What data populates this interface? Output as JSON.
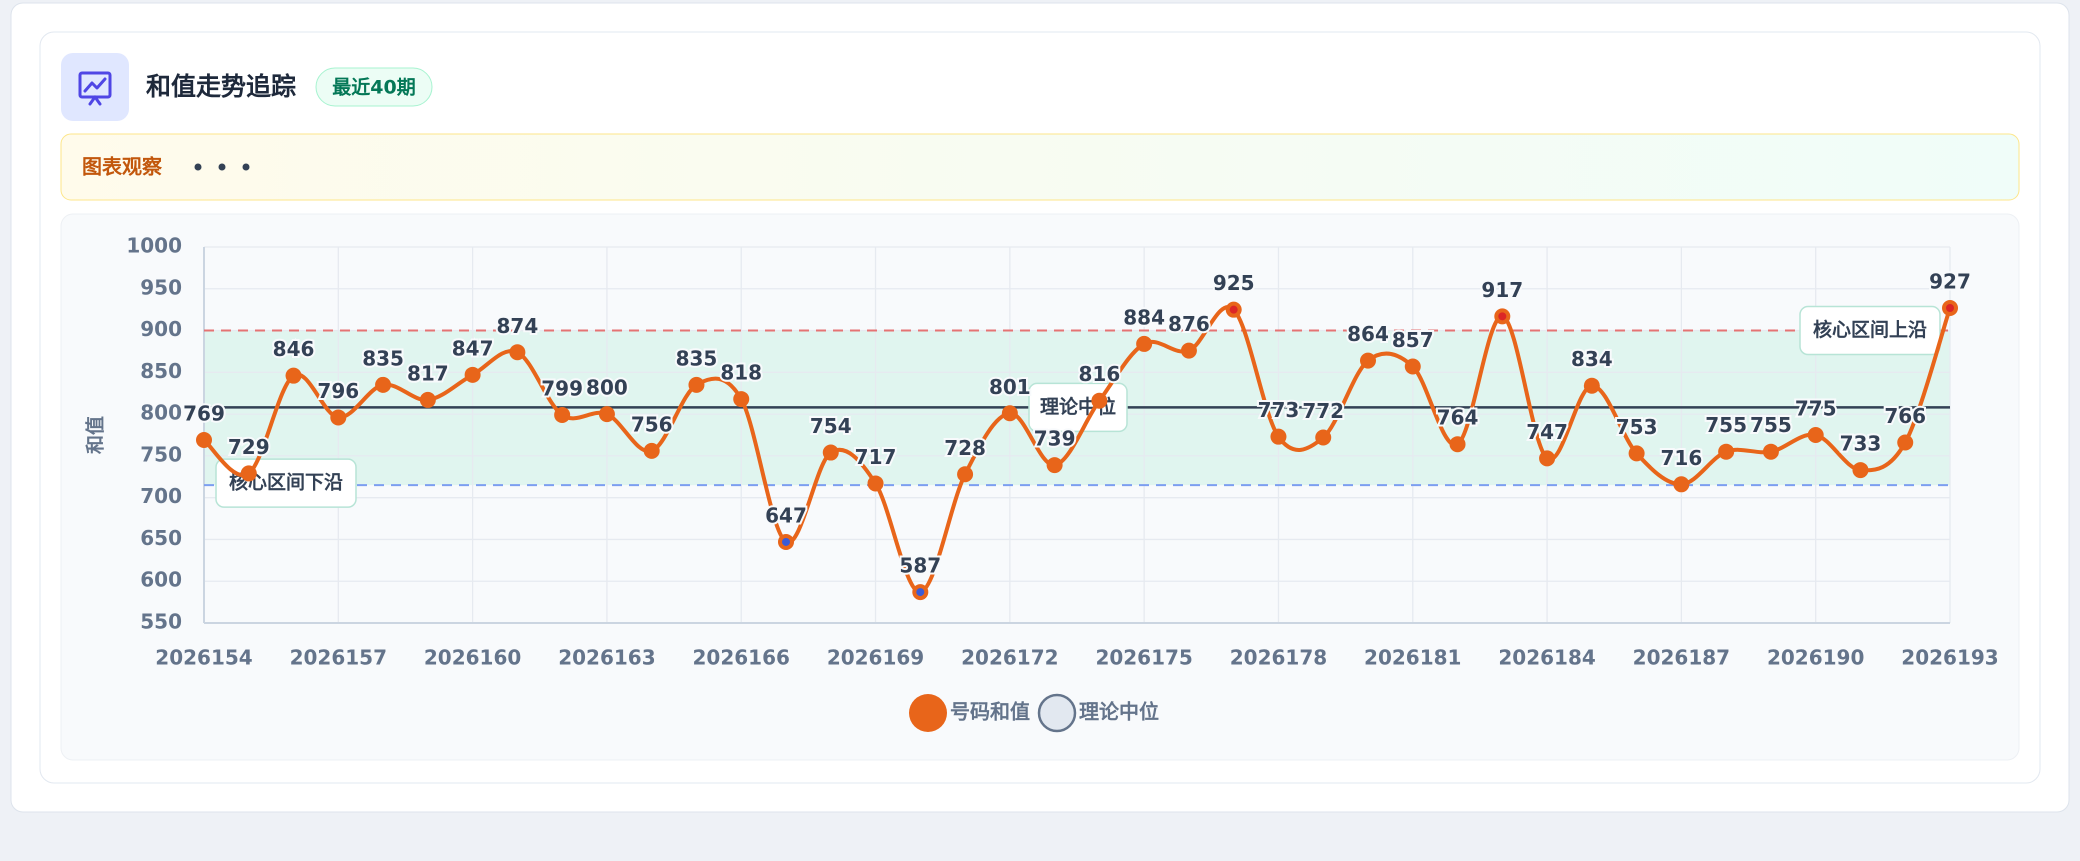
{
  "chart_data": {
    "type": "line",
    "title": "和值走势追踪",
    "badge": "最近40期",
    "observation": "图表观察",
    "y_label": "和值",
    "x": [
      2026154,
      2026155,
      2026156,
      2026157,
      2026158,
      2026159,
      2026160,
      2026161,
      2026162,
      2026163,
      2026164,
      2026165,
      2026166,
      2026167,
      2026168,
      2026169,
      2026170,
      2026171,
      2026172,
      2026173,
      2026174,
      2026175,
      2026176,
      2026177,
      2026178,
      2026179,
      2026180,
      2026181,
      2026182,
      2026183,
      2026184,
      2026185,
      2026186,
      2026187,
      2026188,
      2026189,
      2026190,
      2026191,
      2026192,
      2026193
    ],
    "xlim": [
      2026154,
      2026193
    ],
    "xticks": [
      2026154,
      2026157,
      2026160,
      2026163,
      2026166,
      2026169,
      2026172,
      2026175,
      2026178,
      2026181,
      2026184,
      2026187,
      2026190,
      2026193
    ],
    "ylim": [
      550,
      1000
    ],
    "yticks": [
      550,
      600,
      650,
      700,
      750,
      800,
      850,
      900,
      950,
      1000
    ],
    "grid": true,
    "series": [
      {
        "name": "号码和值",
        "color": "#e8651a",
        "values": [
          769,
          729,
          846,
          796,
          835,
          817,
          847,
          874,
          799,
          800,
          756,
          835,
          818,
          647,
          754,
          717,
          587,
          728,
          801,
          739,
          816,
          884,
          876,
          925,
          773,
          772,
          864,
          857,
          764,
          917,
          747,
          834,
          753,
          716,
          755,
          755,
          775,
          733,
          766,
          927
        ]
      }
    ],
    "reference_lines": [
      {
        "label": "核心区间上沿",
        "value": 900,
        "color": "#e57373"
      },
      {
        "label": "核心区间下沿",
        "value": 715,
        "color": "#7c9ef0"
      },
      {
        "label": "理论中位",
        "value": 808,
        "color": "#334155"
      }
    ]
  }
}
